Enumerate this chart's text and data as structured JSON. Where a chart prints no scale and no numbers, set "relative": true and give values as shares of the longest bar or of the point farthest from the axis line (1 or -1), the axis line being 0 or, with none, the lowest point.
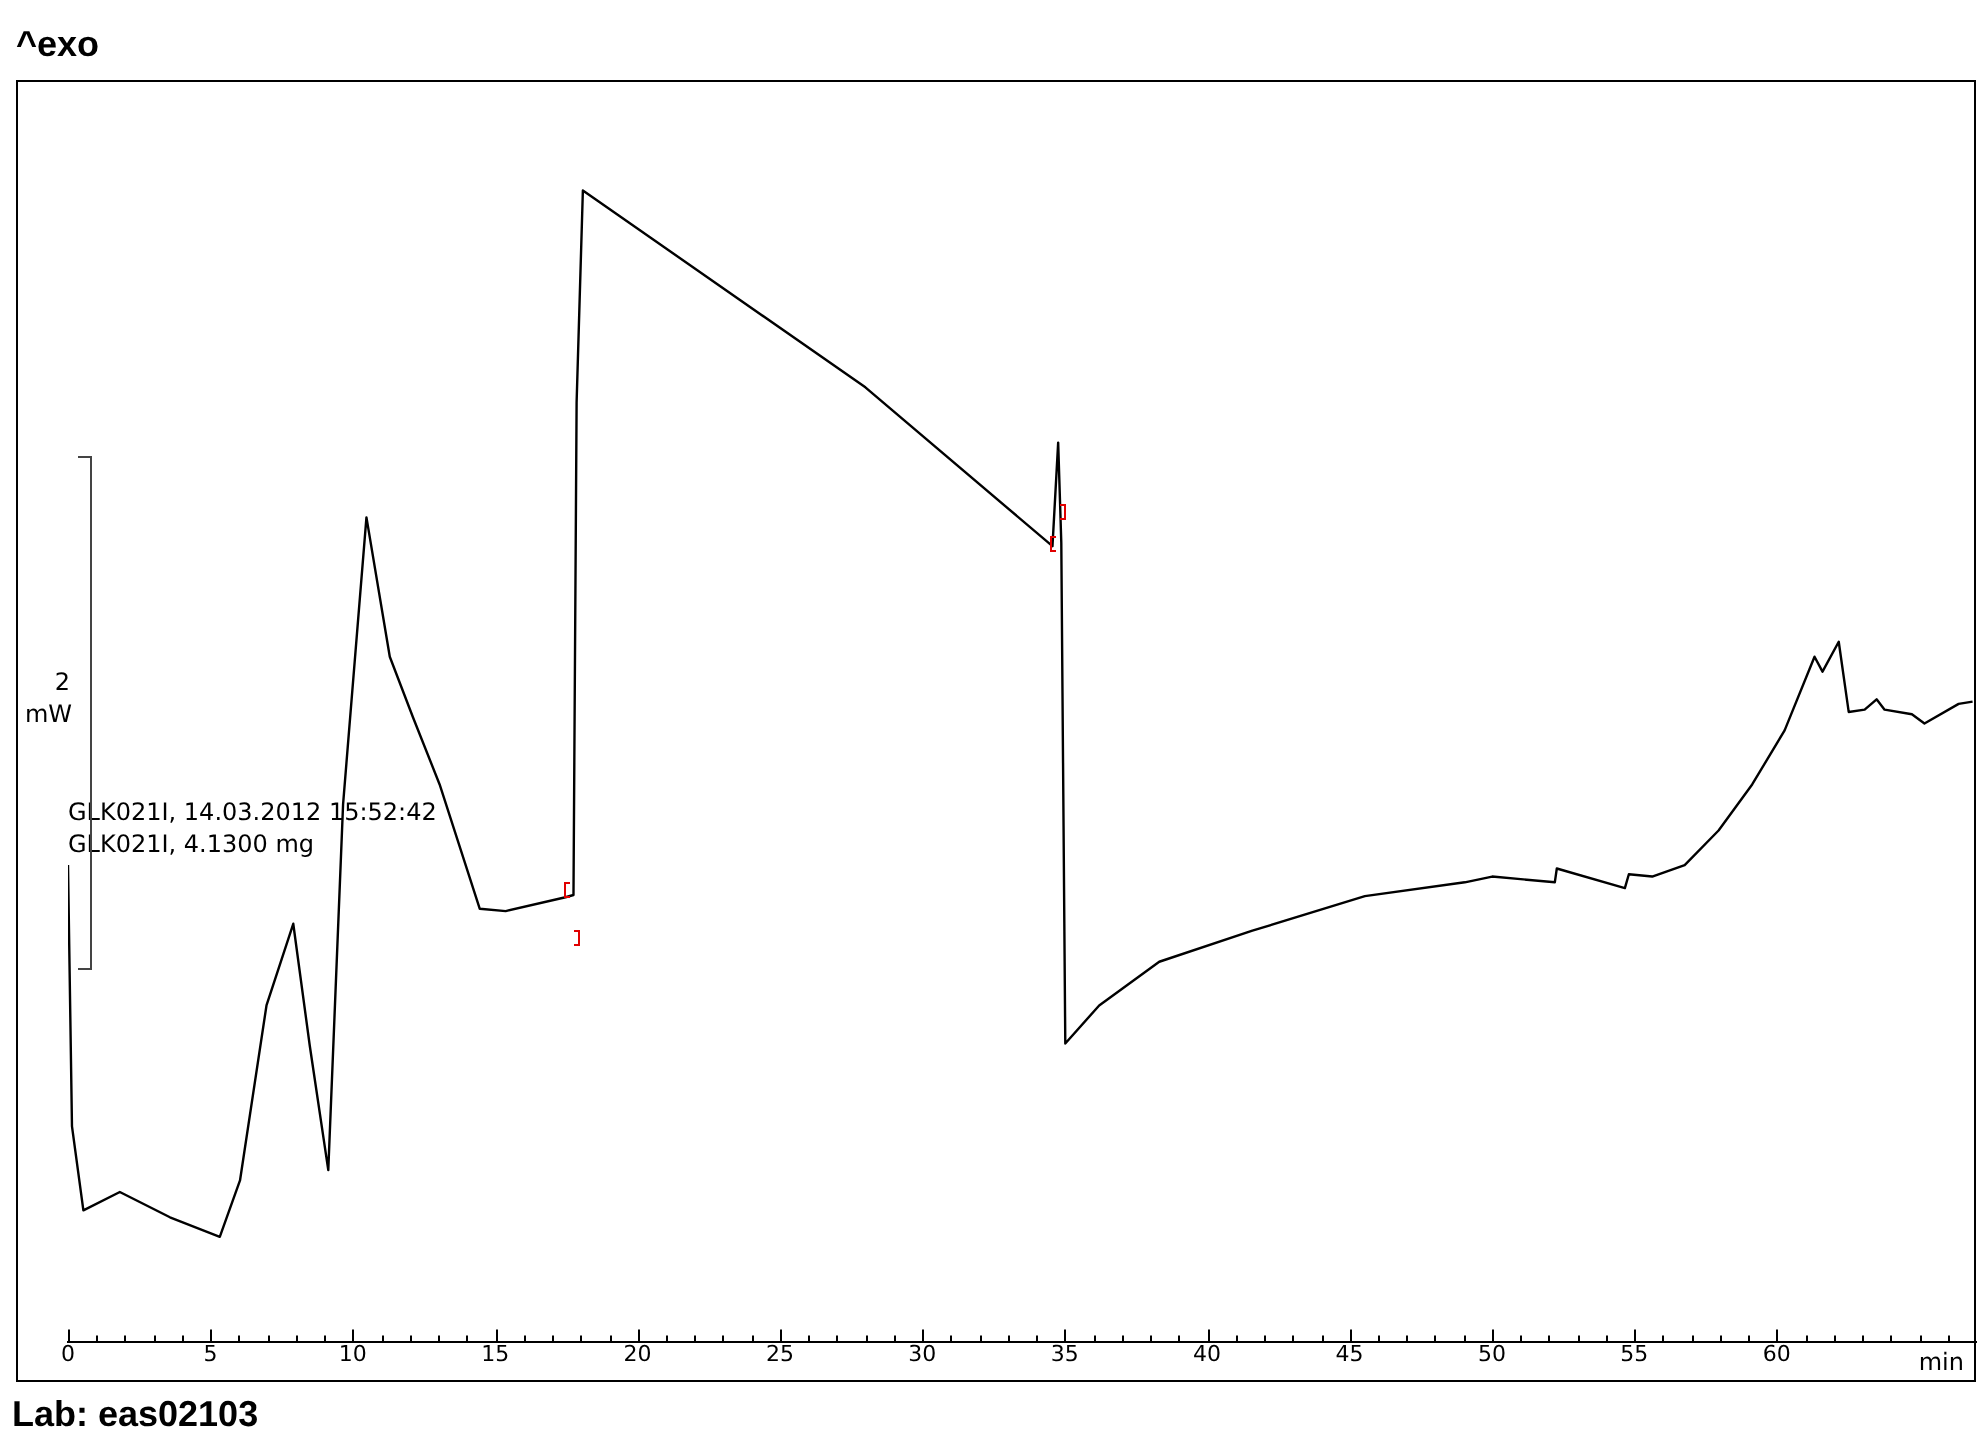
{
  "chart_data": {
    "type": "line",
    "title": "^exo",
    "xlabel": "min",
    "relative": true,
    "legend": false,
    "grid": false,
    "marker": "none",
    "line_style": "solid",
    "annotations": [
      "2",
      "mW",
      "GLK021I, 14.03.2012 15:52:42",
      "GLK021I, 4.1300 mg",
      "Lab: eas02103"
    ],
    "xlim": [
      0,
      67
    ],
    "xticks": [
      0,
      {
        "value": 1,
        "label": null
      },
      {
        "value": 2,
        "label": null
      },
      {
        "value": 3,
        "label": null
      },
      {
        "value": 4,
        "label": null
      },
      5,
      {
        "value": 6,
        "label": null
      },
      {
        "value": 7,
        "label": null
      },
      {
        "value": 8,
        "label": null
      },
      {
        "value": 9,
        "label": null
      },
      10,
      {
        "value": 11,
        "label": null
      },
      {
        "value": 12,
        "label": null
      },
      {
        "value": 13,
        "label": null
      },
      {
        "value": 14,
        "label": null
      },
      15,
      {
        "value": 16,
        "label": null
      },
      {
        "value": 17,
        "label": null
      },
      {
        "value": 18,
        "label": null
      },
      {
        "value": 19,
        "label": null
      },
      20,
      {
        "value": 21,
        "label": null
      },
      {
        "value": 22,
        "label": null
      },
      {
        "value": 23,
        "label": null
      },
      {
        "value": 24,
        "label": null
      },
      25,
      {
        "value": 26,
        "label": null
      },
      {
        "value": 27,
        "label": null
      },
      {
        "value": 28,
        "label": null
      },
      {
        "value": 29,
        "label": null
      },
      30,
      {
        "value": 31,
        "label": null
      },
      {
        "value": 32,
        "label": null
      },
      {
        "value": 33,
        "label": null
      },
      {
        "value": 34,
        "label": null
      },
      35,
      {
        "value": 36,
        "label": null
      },
      {
        "value": 37,
        "label": null
      },
      {
        "value": 38,
        "label": null
      },
      {
        "value": 39,
        "label": null
      },
      40,
      {
        "value": 41,
        "label": null
      },
      {
        "value": 42,
        "label": null
      },
      {
        "value": 43,
        "label": null
      },
      {
        "value": 44,
        "label": null
      },
      45,
      {
        "value": 46,
        "label": null
      },
      {
        "value": 47,
        "label": null
      },
      {
        "value": 48,
        "label": null
      },
      {
        "value": 49,
        "label": null
      },
      50,
      {
        "value": 51,
        "label": null
      },
      {
        "value": 52,
        "label": null
      },
      {
        "value": 53,
        "label": null
      },
      {
        "value": 54,
        "label": null
      },
      55,
      {
        "value": 56,
        "label": null
      },
      {
        "value": 57,
        "label": null
      },
      {
        "value": 58,
        "label": null
      },
      {
        "value": 59,
        "label": null
      },
      60,
      {
        "value": 61,
        "label": null
      },
      {
        "value": 62,
        "label": null
      },
      {
        "value": 63,
        "label": null
      },
      {
        "value": 64,
        "label": null
      },
      {
        "value": 65,
        "label": null
      },
      {
        "value": 66,
        "label": null
      }
    ],
    "series": [
      {
        "color": "#000000",
        "x": [
          0,
          0.14,
          0.54,
          1.82,
          3.58,
          5.33,
          6.04,
          6.97,
          7.91,
          8.49,
          9.14,
          9.66,
          10.48,
          11.3,
          12.12,
          13.05,
          14.46,
          15.37,
          17.47,
          17.75,
          17.86,
          18.08,
          28.0,
          34.57,
          34.77,
          34.88,
          35.02,
          36.21,
          38.32,
          41.59,
          45.54,
          49.05,
          50.01,
          52.21,
          52.28,
          54.67,
          54.81,
          55.63,
          56.77,
          57.96,
          59.14,
          60.28,
          61.33,
          61.61,
          62.18,
          62.53,
          63.09,
          63.51,
          63.79,
          64.75,
          65.19,
          66.39,
          66.88
        ],
        "values": [
          0.414,
          0.187,
          0.114,
          0.13,
          0.108,
          0.091,
          0.14,
          0.292,
          0.363,
          0.257,
          0.149,
          0.467,
          0.716,
          0.595,
          0.542,
          0.484,
          0.376,
          0.374,
          0.386,
          0.388,
          0.816,
          1.0,
          0.829,
          0.691,
          0.781,
          0.694,
          0.259,
          0.292,
          0.33,
          0.357,
          0.387,
          0.399,
          0.404,
          0.399,
          0.411,
          0.394,
          0.406,
          0.404,
          0.414,
          0.444,
          0.484,
          0.531,
          0.595,
          0.582,
          0.608,
          0.547,
          0.549,
          0.558,
          0.549,
          0.545,
          0.537,
          0.554,
          0.556
        ]
      }
    ]
  }
}
